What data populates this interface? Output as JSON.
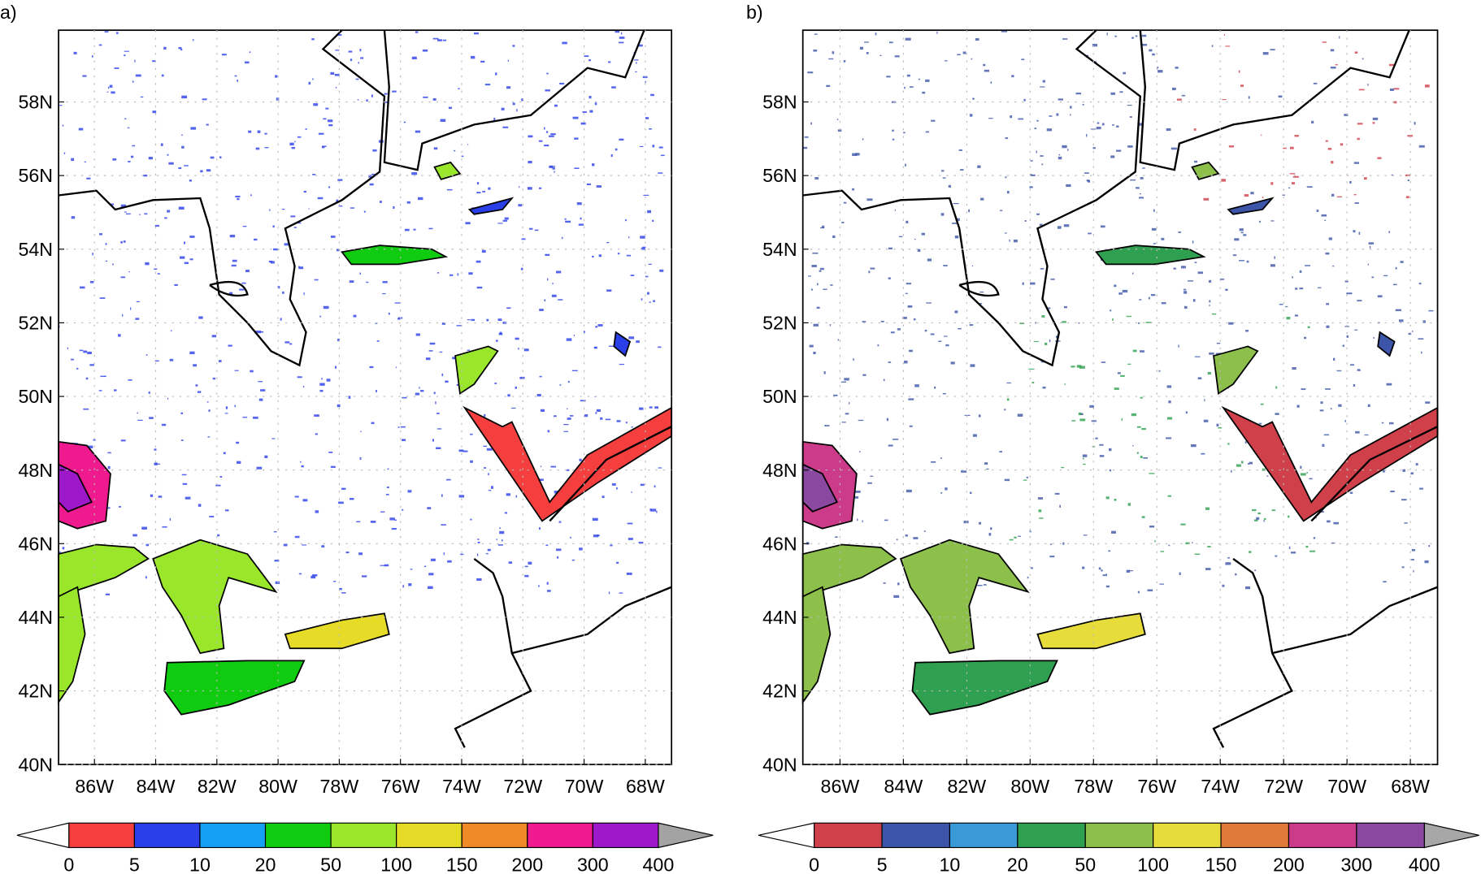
{
  "panels": [
    {
      "label": "a)",
      "lat_ticks": [
        "58N",
        "56N",
        "54N",
        "52N",
        "50N",
        "48N",
        "46N",
        "44N",
        "42N",
        "40N"
      ],
      "lon_ticks": [
        "86W",
        "84W",
        "82W",
        "80W",
        "78W",
        "76W",
        "74W",
        "72W",
        "70W",
        "68W"
      ],
      "colorbar": {
        "levels": [
          0,
          5,
          10,
          20,
          50,
          100,
          150,
          200,
          300,
          400
        ],
        "colors": [
          "#f53f3f",
          "#2a3fe8",
          "#15a0f5",
          "#10cc10",
          "#9ae62a",
          "#e6dc28",
          "#f08a28",
          "#ee1a8e",
          "#9c18c8"
        ],
        "under_color": "#ffffff",
        "over_color": "#a3a3a3"
      }
    },
    {
      "label": "b)",
      "lat_ticks": [
        "58N",
        "56N",
        "54N",
        "52N",
        "50N",
        "48N",
        "46N",
        "44N",
        "42N",
        "40N"
      ],
      "lon_ticks": [
        "86W",
        "84W",
        "82W",
        "80W",
        "78W",
        "76W",
        "74W",
        "72W",
        "70W",
        "68W"
      ],
      "colorbar": {
        "levels": [
          0,
          5,
          10,
          20,
          50,
          100,
          150,
          200,
          300,
          400
        ],
        "colors": [
          "#d0404a",
          "#3c55a8",
          "#3a9ad8",
          "#2ea04f",
          "#8cc04a",
          "#e6dc3a",
          "#e07a38",
          "#cc3a8a",
          "#8a48a0"
        ],
        "under_color": "#ffffff",
        "over_color": "#a7a7a7"
      }
    }
  ]
}
